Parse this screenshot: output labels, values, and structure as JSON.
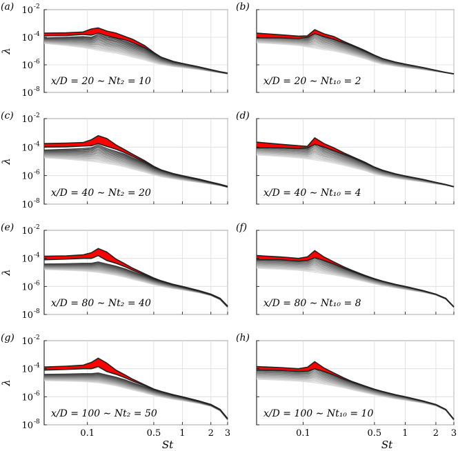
{
  "chart_data": {
    "type": "line",
    "description_axes": {
      "xlabel": "St",
      "ylabel": "λ",
      "xscale": "log",
      "yscale": "log",
      "xlim": [
        0.035,
        3.0
      ],
      "ylim": [
        1e-08,
        0.01
      ]
    },
    "x_ticks": [
      {
        "value": 0.1,
        "label": "0.1"
      },
      {
        "value": 0.5,
        "label": "0.5"
      },
      {
        "value": 1,
        "label": "1"
      },
      {
        "value": 2,
        "label": "2"
      },
      {
        "value": 3,
        "label": "3"
      }
    ],
    "y_ticks": [
      {
        "value": 1e-08,
        "base": "10",
        "exp": "-8"
      },
      {
        "value": 1e-06,
        "base": "10",
        "exp": "-6"
      },
      {
        "value": 0.0001,
        "base": "10",
        "exp": "-4"
      },
      {
        "value": 0.01,
        "base": "10",
        "exp": "-2"
      }
    ],
    "St": [
      0.035,
      0.06,
      0.09,
      0.11,
      0.13,
      0.16,
      0.2,
      0.25,
      0.3,
      0.4,
      0.5,
      0.6,
      0.8,
      1.0,
      1.5,
      2.0,
      2.5,
      3.0
    ],
    "panels": [
      {
        "label": "(a)",
        "annotation": "x/D = 20 ∼ Nt₂ = 10",
        "show_xticks": false,
        "show_xlabel": false,
        "show_yticks": true,
        "eigenvalues_log10": {
          "leading_upper": [
            -3.7,
            -3.68,
            -3.62,
            -3.4,
            -3.32,
            -3.55,
            -3.7,
            -3.95,
            -4.15,
            -4.6,
            -5.1,
            -5.45,
            -5.75,
            -5.9,
            -6.15,
            -6.35,
            -6.5,
            -6.6
          ],
          "leading_lower": [
            -3.9,
            -3.88,
            -3.8,
            -3.85,
            -3.7,
            -3.9,
            -4.05,
            -4.2,
            -4.4,
            -4.75,
            -5.15,
            -5.45,
            -5.75,
            -5.9,
            -6.15,
            -6.35,
            -6.5,
            -6.6
          ],
          "suboptimal_top": [
            -4.05,
            -4.0,
            -3.95,
            -4.0,
            -3.8,
            -4.0,
            -4.1,
            -4.3,
            -4.5,
            -4.8,
            -5.2,
            -5.5,
            -5.8,
            -5.92,
            -6.18,
            -6.38,
            -6.52,
            -6.62
          ],
          "suboptimal_bottom": [
            -4.45,
            -4.6,
            -4.75,
            -4.85,
            -4.95,
            -5.05,
            -5.15,
            -5.3,
            -5.45,
            -5.65,
            -5.85,
            -5.98,
            -6.12,
            -6.2,
            -6.35,
            -6.48,
            -6.58,
            -6.66
          ],
          "n_suboptimal": 14
        }
      },
      {
        "label": "(b)",
        "annotation": "x/D = 20 ∼ Nt₁₀ = 2",
        "show_xticks": false,
        "show_xlabel": false,
        "show_yticks": false,
        "eigenvalues_log10": {
          "leading_upper": [
            -3.7,
            -3.82,
            -3.92,
            -3.9,
            -3.45,
            -3.75,
            -3.95,
            -4.3,
            -4.55,
            -4.95,
            -5.3,
            -5.55,
            -5.8,
            -5.95,
            -6.2,
            -6.4,
            -6.55,
            -6.65
          ],
          "leading_lower": [
            -4.05,
            -4.05,
            -4.1,
            -4.0,
            -3.75,
            -3.95,
            -4.15,
            -4.4,
            -4.6,
            -5.0,
            -5.32,
            -5.55,
            -5.8,
            -5.95,
            -6.2,
            -6.4,
            -6.55,
            -6.65
          ],
          "suboptimal_top": [
            -3.8,
            -3.88,
            -3.95,
            -3.95,
            -3.55,
            -3.85,
            -4.05,
            -4.35,
            -4.58,
            -4.98,
            -5.32,
            -5.56,
            -5.81,
            -5.96,
            -6.21,
            -6.41,
            -6.56,
            -6.66
          ],
          "suboptimal_bottom": [
            -4.4,
            -4.5,
            -4.6,
            -4.7,
            -4.8,
            -4.9,
            -5.0,
            -5.15,
            -5.3,
            -5.55,
            -5.8,
            -5.95,
            -6.1,
            -6.2,
            -6.35,
            -6.48,
            -6.58,
            -6.68
          ],
          "n_suboptimal": 14
        }
      },
      {
        "label": "(c)",
        "annotation": "x/D = 40 ∼ Nt₂ = 20",
        "show_xticks": false,
        "show_xlabel": false,
        "show_yticks": true,
        "eigenvalues_log10": {
          "leading_upper": [
            -3.75,
            -3.72,
            -3.68,
            -3.48,
            -3.2,
            -3.4,
            -3.85,
            -4.2,
            -4.5,
            -4.95,
            -5.35,
            -5.6,
            -5.85,
            -6.0,
            -6.25,
            -6.45,
            -6.6,
            -6.75
          ],
          "leading_lower": [
            -4.0,
            -3.98,
            -3.92,
            -3.9,
            -3.75,
            -3.95,
            -4.15,
            -4.4,
            -4.65,
            -5.05,
            -5.4,
            -5.62,
            -5.87,
            -6.02,
            -6.27,
            -6.47,
            -6.62,
            -6.77
          ],
          "suboptimal_top": [
            -4.2,
            -4.15,
            -4.1,
            -4.05,
            -3.85,
            -4.1,
            -4.3,
            -4.5,
            -4.75,
            -5.1,
            -5.45,
            -5.65,
            -5.9,
            -6.05,
            -6.3,
            -6.5,
            -6.65,
            -6.8
          ],
          "suboptimal_bottom": [
            -4.75,
            -4.85,
            -4.95,
            -5.0,
            -5.05,
            -5.15,
            -5.25,
            -5.4,
            -5.55,
            -5.75,
            -5.95,
            -6.08,
            -6.22,
            -6.32,
            -6.48,
            -6.6,
            -6.7,
            -6.82
          ],
          "n_suboptimal": 14
        }
      },
      {
        "label": "(d)",
        "annotation": "x/D = 40 ∼ Nt₁₀ = 4",
        "show_xticks": false,
        "show_xlabel": false,
        "show_yticks": false,
        "eigenvalues_log10": {
          "leading_upper": [
            -3.65,
            -3.8,
            -3.9,
            -3.95,
            -3.35,
            -3.75,
            -4.05,
            -4.4,
            -4.65,
            -5.05,
            -5.4,
            -5.62,
            -5.87,
            -6.02,
            -6.27,
            -6.47,
            -6.62,
            -6.77
          ],
          "leading_lower": [
            -4.05,
            -4.05,
            -4.1,
            -4.05,
            -3.8,
            -4.0,
            -4.25,
            -4.5,
            -4.72,
            -5.1,
            -5.42,
            -5.64,
            -5.88,
            -6.03,
            -6.28,
            -6.48,
            -6.63,
            -6.78
          ],
          "suboptimal_top": [
            -3.8,
            -3.9,
            -3.95,
            -4.0,
            -3.55,
            -3.95,
            -4.15,
            -4.45,
            -4.68,
            -5.08,
            -5.42,
            -5.64,
            -5.88,
            -6.03,
            -6.28,
            -6.48,
            -6.63,
            -6.78
          ],
          "suboptimal_bottom": [
            -4.55,
            -4.65,
            -4.75,
            -4.82,
            -4.9,
            -5.0,
            -5.12,
            -5.28,
            -5.42,
            -5.65,
            -5.88,
            -6.02,
            -6.18,
            -6.28,
            -6.45,
            -6.58,
            -6.68,
            -6.8
          ],
          "n_suboptimal": 14
        }
      },
      {
        "label": "(e)",
        "annotation": "x/D = 80 ∼ Nt₂ = 40",
        "show_xticks": false,
        "show_xlabel": false,
        "show_yticks": true,
        "eigenvalues_log10": {
          "leading_upper": [
            -3.85,
            -3.82,
            -3.75,
            -3.6,
            -3.3,
            -3.55,
            -4.05,
            -4.4,
            -4.7,
            -5.1,
            -5.4,
            -5.6,
            -5.85,
            -6.0,
            -6.3,
            -6.55,
            -6.85,
            -7.4
          ],
          "leading_lower": [
            -4.1,
            -4.05,
            -4.0,
            -4.0,
            -3.8,
            -4.15,
            -4.35,
            -4.6,
            -4.85,
            -5.18,
            -5.45,
            -5.63,
            -5.87,
            -6.02,
            -6.32,
            -6.57,
            -6.87,
            -7.42
          ],
          "suboptimal_top": [
            -4.4,
            -4.38,
            -4.35,
            -4.35,
            -4.25,
            -4.4,
            -4.55,
            -4.75,
            -4.95,
            -5.25,
            -5.5,
            -5.66,
            -5.9,
            -6.05,
            -6.35,
            -6.6,
            -6.9,
            -7.45
          ],
          "suboptimal_bottom": [
            -4.8,
            -4.85,
            -4.9,
            -4.95,
            -5.0,
            -5.1,
            -5.2,
            -5.35,
            -5.5,
            -5.7,
            -5.88,
            -6.0,
            -6.15,
            -6.25,
            -6.45,
            -6.65,
            -6.95,
            -7.5
          ],
          "n_suboptimal": 14
        }
      },
      {
        "label": "(f)",
        "annotation": "x/D = 80 ∼ Nt₁₀ = 8",
        "show_xticks": false,
        "show_xlabel": false,
        "show_yticks": false,
        "eigenvalues_log10": {
          "leading_upper": [
            -3.8,
            -3.9,
            -4.0,
            -3.9,
            -3.45,
            -3.9,
            -4.25,
            -4.6,
            -4.85,
            -5.2,
            -5.45,
            -5.62,
            -5.85,
            -6.0,
            -6.3,
            -6.55,
            -6.85,
            -7.45
          ],
          "leading_lower": [
            -4.1,
            -4.1,
            -4.2,
            -4.15,
            -3.95,
            -4.15,
            -4.4,
            -4.7,
            -4.92,
            -5.25,
            -5.48,
            -5.64,
            -5.87,
            -6.02,
            -6.32,
            -6.57,
            -6.87,
            -7.47
          ],
          "suboptimal_top": [
            -3.95,
            -4.0,
            -4.1,
            -4.05,
            -3.7,
            -4.05,
            -4.35,
            -4.65,
            -4.88,
            -5.22,
            -5.46,
            -5.63,
            -5.86,
            -6.01,
            -6.31,
            -6.56,
            -6.86,
            -7.46
          ],
          "suboptimal_bottom": [
            -4.7,
            -4.78,
            -4.85,
            -4.92,
            -4.98,
            -5.08,
            -5.18,
            -5.32,
            -5.45,
            -5.65,
            -5.82,
            -5.95,
            -6.1,
            -6.22,
            -6.42,
            -6.62,
            -6.92,
            -7.5
          ],
          "n_suboptimal": 14
        }
      },
      {
        "label": "(g)",
        "annotation": "x/D = 100 ∼ Nt₂ = 50",
        "show_xticks": true,
        "show_xlabel": true,
        "show_yticks": true,
        "eigenvalues_log10": {
          "leading_upper": [
            -3.88,
            -3.82,
            -3.75,
            -3.55,
            -3.25,
            -3.6,
            -4.1,
            -4.45,
            -4.75,
            -5.15,
            -5.45,
            -5.62,
            -5.85,
            -6.0,
            -6.3,
            -6.55,
            -6.9,
            -7.55
          ],
          "leading_lower": [
            -4.1,
            -4.05,
            -4.0,
            -4.0,
            -3.85,
            -4.2,
            -4.4,
            -4.65,
            -4.88,
            -5.2,
            -5.47,
            -5.64,
            -5.87,
            -6.02,
            -6.32,
            -6.57,
            -6.92,
            -7.57
          ],
          "suboptimal_top": [
            -4.4,
            -4.38,
            -4.35,
            -4.35,
            -4.3,
            -4.45,
            -4.6,
            -4.8,
            -5.0,
            -5.28,
            -5.52,
            -5.67,
            -5.9,
            -6.05,
            -6.35,
            -6.6,
            -6.95,
            -7.6
          ],
          "suboptimal_bottom": [
            -4.85,
            -4.88,
            -4.92,
            -4.96,
            -5.0,
            -5.1,
            -5.22,
            -5.38,
            -5.52,
            -5.72,
            -5.9,
            -6.02,
            -6.18,
            -6.28,
            -6.48,
            -6.68,
            -7.0,
            -7.65
          ],
          "n_suboptimal": 14
        }
      },
      {
        "label": "(h)",
        "annotation": "x/D = 100 ∼ Nt₁₀ = 10",
        "show_xticks": true,
        "show_xlabel": true,
        "show_yticks": false,
        "eigenvalues_log10": {
          "leading_upper": [
            -3.85,
            -3.92,
            -4.0,
            -3.9,
            -3.5,
            -3.95,
            -4.3,
            -4.65,
            -4.9,
            -5.22,
            -5.46,
            -5.62,
            -5.85,
            -6.0,
            -6.3,
            -6.55,
            -6.9,
            -7.6
          ],
          "leading_lower": [
            -4.1,
            -4.12,
            -4.2,
            -4.18,
            -4.0,
            -4.2,
            -4.45,
            -4.75,
            -4.95,
            -5.26,
            -5.48,
            -5.64,
            -5.87,
            -6.02,
            -6.32,
            -6.57,
            -6.92,
            -7.62
          ],
          "suboptimal_top": [
            -3.95,
            -4.0,
            -4.1,
            -4.05,
            -3.75,
            -4.1,
            -4.38,
            -4.7,
            -4.92,
            -5.24,
            -5.47,
            -5.63,
            -5.86,
            -6.01,
            -6.31,
            -6.56,
            -6.91,
            -7.61
          ],
          "suboptimal_bottom": [
            -4.75,
            -4.82,
            -4.88,
            -4.94,
            -5.0,
            -5.1,
            -5.22,
            -5.36,
            -5.5,
            -5.7,
            -5.86,
            -5.98,
            -6.14,
            -6.25,
            -6.45,
            -6.65,
            -6.98,
            -7.68
          ],
          "n_suboptimal": 14
        }
      }
    ]
  }
}
